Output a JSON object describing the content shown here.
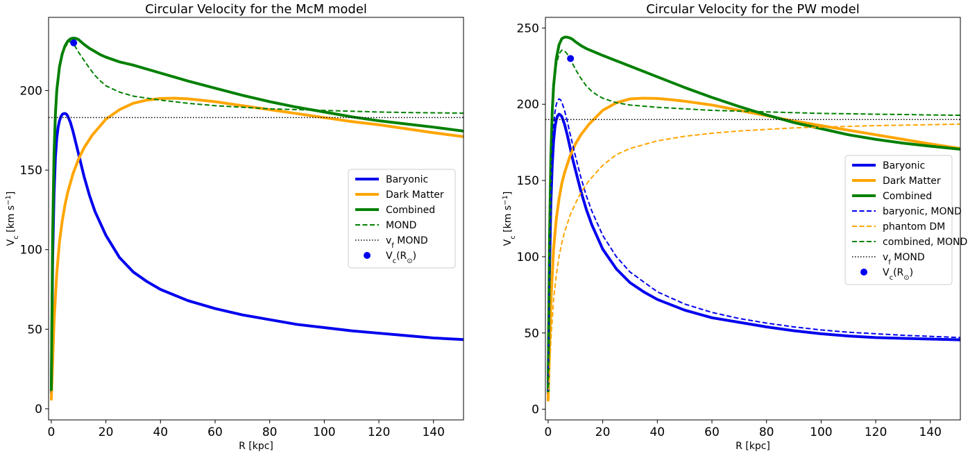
{
  "chart_data": [
    {
      "type": "line",
      "title": "Circular Velocity for the McM model",
      "xlabel": "R [kpc]",
      "ylabel_main": "V",
      "ylabel_sub": "c",
      "ylabel_unit": " [km s",
      "ylabel_exp": "−1",
      "ylabel_close": "]",
      "xlim": [
        -1,
        151
      ],
      "ylim": [
        -7,
        246
      ],
      "xticks": [
        0,
        20,
        40,
        60,
        80,
        100,
        120,
        140
      ],
      "yticks": [
        0,
        50,
        100,
        150,
        200
      ],
      "legend": "center-right",
      "series": [
        {
          "name": "Baryonic",
          "color": "#0000ee",
          "style": "solid",
          "width": 4,
          "x": [
            0,
            0.5,
            1,
            1.5,
            2,
            2.5,
            3,
            3.5,
            4,
            4.5,
            5,
            5.5,
            6,
            7,
            8,
            9,
            10,
            12,
            14,
            16,
            20,
            25,
            30,
            35,
            40,
            50,
            60,
            70,
            80,
            90,
            100,
            110,
            120,
            130,
            140,
            151
          ],
          "y": [
            10,
            95,
            135,
            158,
            170,
            177,
            181,
            183.5,
            185,
            185.5,
            185.6,
            185.2,
            184,
            180,
            174,
            167,
            160,
            146,
            134,
            124,
            109,
            95,
            86,
            80,
            75,
            68,
            63,
            59,
            56,
            53,
            51,
            49,
            47.5,
            46,
            44.5,
            43.5
          ]
        },
        {
          "name": "Dark Matter",
          "color": "#ffa500",
          "style": "solid",
          "width": 4,
          "x": [
            0,
            0.5,
            1,
            2,
            3,
            4,
            5,
            6,
            8,
            10,
            12,
            15,
            20,
            25,
            30,
            35,
            40,
            45,
            50,
            60,
            70,
            80,
            90,
            100,
            110,
            120,
            130,
            140,
            151
          ],
          "y": [
            6,
            30,
            55,
            85,
            105,
            118,
            128,
            136,
            148,
            157,
            164,
            172,
            182,
            188,
            192,
            194,
            195,
            195.2,
            194.8,
            193,
            190.5,
            188,
            185.5,
            183,
            180.5,
            178.5,
            176,
            173.5,
            171
          ]
        },
        {
          "name": "Combined",
          "color": "#008000",
          "style": "solid",
          "width": 4,
          "x": [
            0,
            0.5,
            1,
            1.5,
            2,
            3,
            4,
            5,
            6,
            7,
            8,
            9,
            10,
            12,
            14,
            16,
            18,
            20,
            25,
            30,
            40,
            50,
            60,
            70,
            80,
            90,
            100,
            110,
            120,
            130,
            140,
            151
          ],
          "y": [
            12,
            110,
            160,
            185,
            200,
            215,
            223,
            228,
            231,
            232.5,
            233,
            232.8,
            232,
            229,
            226.5,
            224.5,
            222.5,
            221,
            218,
            216,
            211,
            206,
            201.5,
            197,
            193,
            189.5,
            186.5,
            183.5,
            181,
            179,
            177,
            174.5
          ]
        },
        {
          "name": "MOND",
          "color": "#008000",
          "style": "dashed",
          "width": 2,
          "x": [
            0,
            0.5,
            1,
            2,
            3,
            4,
            5,
            6,
            7,
            8,
            9,
            10,
            12,
            14,
            16,
            18,
            20,
            25,
            30,
            40,
            50,
            60,
            70,
            80,
            90,
            100,
            110,
            120,
            130,
            140,
            151
          ],
          "y": [
            12,
            110,
            160,
            200,
            215,
            222,
            227,
            229.5,
            231,
            229.5,
            227,
            224,
            219,
            214,
            209.5,
            206,
            203,
            199,
            196.5,
            194,
            192,
            190.5,
            189.5,
            188.5,
            188,
            187.5,
            187,
            186.5,
            186.2,
            186,
            185.8
          ]
        },
        {
          "name": "v",
          "name_sub": "f",
          "name_tail": " MOND",
          "color": "#000000",
          "style": "dotted",
          "width": 1.5,
          "x": [
            -1,
            151
          ],
          "y": [
            183,
            183
          ]
        }
      ],
      "point": {
        "name": "V",
        "name_sub": "c",
        "name_tail": "(R",
        "name_sym": "⊙",
        "name_close": ")",
        "x": 8.2,
        "y": 230,
        "color": "#0000ee"
      }
    },
    {
      "type": "line",
      "title": "Circular Velocity for the PW model",
      "xlabel": "R [kpc]",
      "ylabel_main": "V",
      "ylabel_sub": "c",
      "ylabel_unit": " [km s",
      "ylabel_exp": "−1",
      "ylabel_close": "]",
      "xlim": [
        -1,
        151
      ],
      "ylim": [
        -7,
        257
      ],
      "xticks": [
        0,
        20,
        40,
        60,
        80,
        100,
        120,
        140
      ],
      "yticks": [
        0,
        50,
        100,
        150,
        200,
        250
      ],
      "legend": "center-right",
      "series": [
        {
          "name": "Baryonic",
          "color": "#0000ee",
          "style": "solid",
          "width": 4,
          "x": [
            0,
            0.5,
            1,
            1.5,
            2,
            2.5,
            3,
            3.5,
            4,
            4.5,
            5,
            6,
            7,
            8,
            9,
            10,
            12,
            14,
            16,
            20,
            25,
            30,
            35,
            40,
            50,
            60,
            70,
            80,
            90,
            100,
            110,
            120,
            130,
            140,
            151
          ],
          "y": [
            10,
            90,
            135,
            160,
            176,
            185,
            190,
            192.5,
            193.5,
            193,
            192,
            187,
            180,
            172,
            164,
            157,
            143,
            131,
            121,
            105,
            92,
            83,
            77,
            72,
            65,
            60,
            57,
            54,
            51.5,
            49.5,
            48,
            47,
            46.5,
            46,
            45.5
          ]
        },
        {
          "name": "Dark Matter",
          "color": "#ffa500",
          "style": "solid",
          "width": 4,
          "x": [
            0,
            0.5,
            1,
            2,
            3,
            4,
            5,
            6,
            8,
            10,
            12,
            15,
            20,
            25,
            30,
            35,
            40,
            45,
            50,
            60,
            70,
            80,
            90,
            100,
            110,
            120,
            130,
            140,
            151
          ],
          "y": [
            6,
            40,
            70,
            105,
            125,
            138,
            148,
            155,
            166,
            174,
            180,
            187,
            196,
            201,
            203.5,
            204,
            203.8,
            203,
            202,
            199.5,
            196,
            192.5,
            189,
            186,
            183,
            180,
            177,
            174,
            171
          ]
        },
        {
          "name": "Combined",
          "color": "#008000",
          "style": "solid",
          "width": 4,
          "x": [
            0,
            0.5,
            1,
            1.5,
            2,
            3,
            4,
            5,
            6,
            7,
            8,
            9,
            10,
            12,
            14,
            16,
            18,
            20,
            25,
            30,
            40,
            50,
            60,
            70,
            80,
            90,
            100,
            110,
            120,
            130,
            140,
            151
          ],
          "y": [
            12,
            110,
            165,
            195,
            212,
            230,
            239,
            243,
            244,
            244,
            243.5,
            242.5,
            241,
            238.5,
            236.5,
            235,
            233.5,
            232,
            228.5,
            225,
            218,
            211,
            204.5,
            198.5,
            193,
            188,
            184,
            180,
            177,
            174.5,
            172.5,
            170.5
          ]
        },
        {
          "name": "baryonic, MOND",
          "color": "#0000ee",
          "style": "dashed",
          "width": 2,
          "x": [
            0,
            0.5,
            1,
            1.5,
            2,
            2.5,
            3,
            3.5,
            4,
            4.5,
            5,
            6,
            7,
            8,
            10,
            12,
            14,
            16,
            20,
            25,
            30,
            40,
            50,
            60,
            70,
            80,
            90,
            100,
            110,
            120,
            130,
            140,
            151
          ],
          "y": [
            12,
            95,
            142,
            170,
            186,
            195,
            200,
            202.5,
            203.5,
            203,
            201.5,
            196,
            189,
            181,
            166,
            152,
            140,
            130,
            114,
            100,
            90,
            77,
            69,
            63.5,
            59.5,
            56.5,
            54,
            52,
            50.5,
            49.5,
            48.5,
            47.8,
            47
          ]
        },
        {
          "name": "phantom DM",
          "color": "#ffa500",
          "style": "dashed",
          "width": 2,
          "x": [
            0,
            0.5,
            1,
            2,
            3,
            4,
            5,
            6,
            8,
            10,
            12,
            15,
            20,
            25,
            30,
            40,
            50,
            60,
            70,
            80,
            90,
            100,
            110,
            120,
            130,
            140,
            151
          ],
          "y": [
            8,
            25,
            45,
            72,
            88,
            100,
            109,
            116,
            127,
            135,
            142,
            150,
            160,
            167,
            171,
            176,
            179,
            181,
            182.5,
            183.5,
            184.5,
            185,
            185.5,
            186,
            186.3,
            186.6,
            187
          ]
        },
        {
          "name": "combined, MOND",
          "color": "#008000",
          "style": "dashed",
          "width": 2,
          "x": [
            0,
            0.5,
            1,
            2,
            3,
            4,
            5,
            6,
            7,
            8,
            9,
            10,
            12,
            14,
            16,
            18,
            20,
            25,
            30,
            40,
            50,
            60,
            70,
            80,
            90,
            100,
            110,
            120,
            130,
            140,
            151
          ],
          "y": [
            14,
            120,
            170,
            210,
            226,
            233,
            235.5,
            235,
            233,
            230,
            226.5,
            223,
            217,
            212,
            208.5,
            206,
            204,
            201,
            199.5,
            198,
            197,
            196,
            195.5,
            195,
            194.5,
            194,
            193.8,
            193.5,
            193.3,
            193,
            192.8
          ]
        },
        {
          "name": "v",
          "name_sub": "f",
          "name_tail": " MOND",
          "color": "#000000",
          "style": "dotted",
          "width": 1.5,
          "x": [
            -1,
            151
          ],
          "y": [
            190,
            190
          ]
        }
      ],
      "point": {
        "name": "V",
        "name_sub": "c",
        "name_tail": "(R",
        "name_sym": "⊙",
        "name_close": ")",
        "x": 8.2,
        "y": 230,
        "color": "#0000ee"
      }
    }
  ]
}
